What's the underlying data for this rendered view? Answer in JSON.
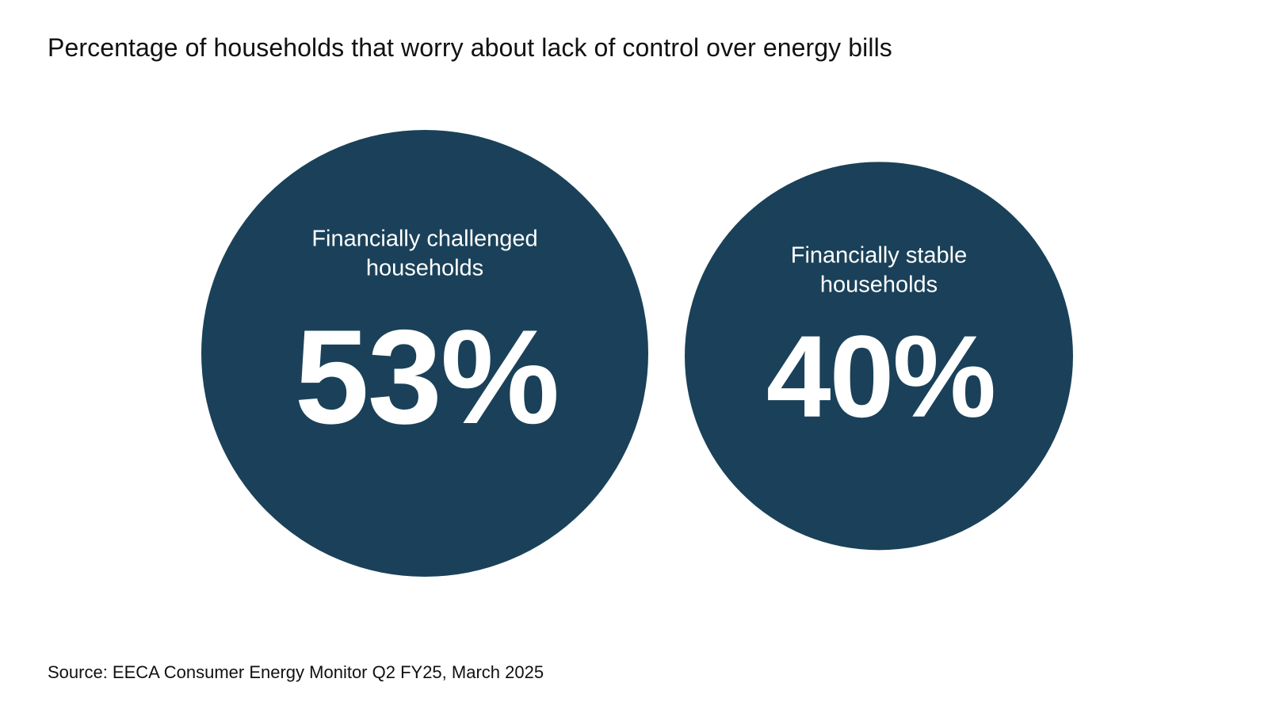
{
  "chart_data": {
    "type": "bubble",
    "title": "Percentage of households that worry about lack of control over energy bills",
    "series": [
      {
        "name": "Financially challenged households",
        "label_lines": [
          "Financially challenged",
          "households"
        ],
        "value": 53,
        "display": "53%"
      },
      {
        "name": "Financially stable households",
        "label_lines": [
          "Financially stable",
          "households"
        ],
        "value": 40,
        "display": "40%"
      }
    ],
    "unit": "%",
    "source": "Source: EECA Consumer Energy Monitor Q2 FY25, March 2025",
    "colors": {
      "bubble": "#1a4159",
      "bubble_text": "#ffffff",
      "text": "#111111",
      "background": "#ffffff"
    }
  }
}
